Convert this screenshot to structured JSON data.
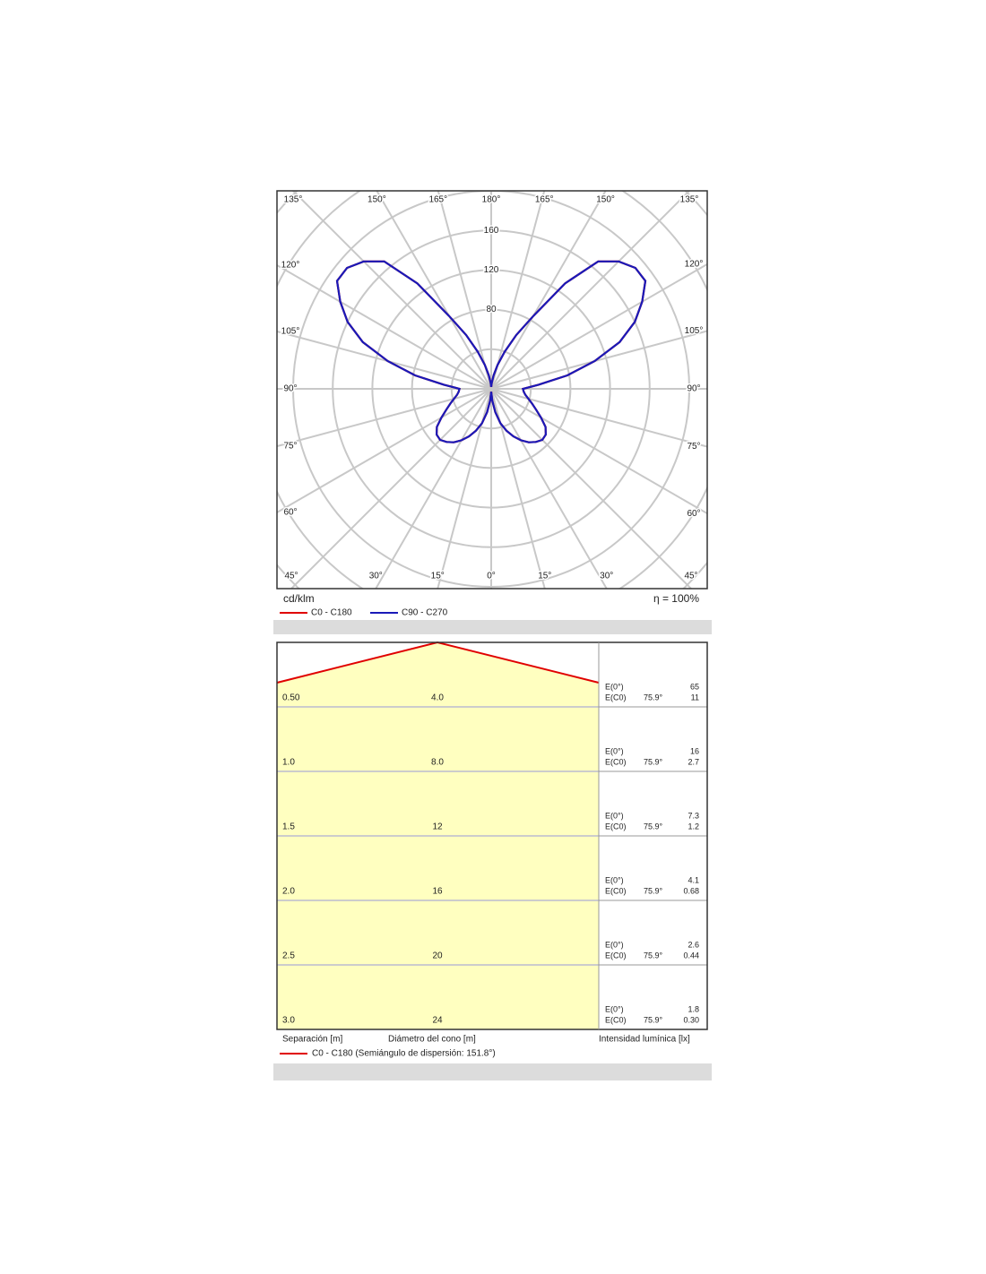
{
  "chart_data": {
    "type": "polar",
    "unit": "cd/klm",
    "efficiency": "η = 100%",
    "gamma": [
      0,
      5,
      10,
      15,
      20,
      25,
      30,
      35,
      40,
      45,
      50,
      55,
      60,
      65,
      70,
      75,
      80,
      85,
      90,
      95,
      100,
      105,
      110,
      115,
      120,
      125,
      130,
      135,
      140,
      145,
      150,
      155,
      160,
      165,
      170,
      175,
      180
    ],
    "series": [
      {
        "name": "C0 - C180",
        "color": "#e00000",
        "values": [
          3,
          12,
          24,
          36,
          45,
          53,
          60,
          66,
          70,
          73,
          72,
          67,
          58,
          50,
          44,
          39,
          35,
          33,
          32,
          48,
          78,
          108,
          138,
          160,
          176,
          190,
          190,
          182,
          168,
          130,
          85,
          60,
          40,
          25,
          14,
          6,
          2
        ]
      },
      {
        "name": "C90 - C270",
        "color": "#1a1ab8",
        "values": [
          3,
          12,
          24,
          36,
          45,
          53,
          60,
          66,
          70,
          73,
          72,
          67,
          58,
          50,
          44,
          39,
          35,
          33,
          32,
          48,
          78,
          108,
          138,
          160,
          176,
          190,
          190,
          182,
          168,
          130,
          85,
          60,
          40,
          25,
          14,
          6,
          2
        ]
      }
    ],
    "rlim": [
      0,
      200
    ],
    "rticks": [
      80,
      120,
      160
    ],
    "rings": [
      40,
      80,
      120,
      160,
      200,
      240,
      280
    ],
    "angle_ticks": [
      {
        "value": 0,
        "label": "0°"
      },
      {
        "value": 15,
        "label": "15°"
      },
      {
        "value": 30,
        "label": "30°"
      },
      {
        "value": 45,
        "label": "45°"
      },
      {
        "value": 60,
        "label": "60°"
      },
      {
        "value": 75,
        "label": "75°"
      },
      {
        "value": 90,
        "label": "90°"
      },
      {
        "value": 105,
        "label": "105°"
      },
      {
        "value": 120,
        "label": "120°"
      },
      {
        "value": 135,
        "label": "135°"
      },
      {
        "value": 150,
        "label": "150°"
      },
      {
        "value": 165,
        "label": "165°"
      },
      {
        "value": 180,
        "label": "180°"
      }
    ]
  },
  "cone_diagram": {
    "rows": [
      {
        "separation": "0.50",
        "diameter": "4.0",
        "e0_label": "E(0°)",
        "e0": "65",
        "ec0_label": "E(C0)",
        "angle": "75.9°",
        "ec0": "11"
      },
      {
        "separation": "1.0",
        "diameter": "8.0",
        "e0_label": "E(0°)",
        "e0": "16",
        "ec0_label": "E(C0)",
        "angle": "75.9°",
        "ec0": "2.7"
      },
      {
        "separation": "1.5",
        "diameter": "12",
        "e0_label": "E(0°)",
        "e0": "7.3",
        "ec0_label": "E(C0)",
        "angle": "75.9°",
        "ec0": "1.2"
      },
      {
        "separation": "2.0",
        "diameter": "16",
        "e0_label": "E(0°)",
        "e0": "4.1",
        "ec0_label": "E(C0)",
        "angle": "75.9°",
        "ec0": "0.68"
      },
      {
        "separation": "2.5",
        "diameter": "20",
        "e0_label": "E(0°)",
        "e0": "2.6",
        "ec0_label": "E(C0)",
        "angle": "75.9°",
        "ec0": "0.44"
      },
      {
        "separation": "3.0",
        "diameter": "24",
        "e0_label": "E(0°)",
        "e0": "1.8",
        "ec0_label": "E(C0)",
        "angle": "75.9°",
        "ec0": "0.30"
      }
    ],
    "separation_label": "Separación [m]",
    "diameter_label": "Diámetro del cono [m]",
    "intensity_label": "Intensidad lumínica [lx]",
    "legend": "C0 - C180 (Semiángulo de dispersión: 151.8°)"
  }
}
